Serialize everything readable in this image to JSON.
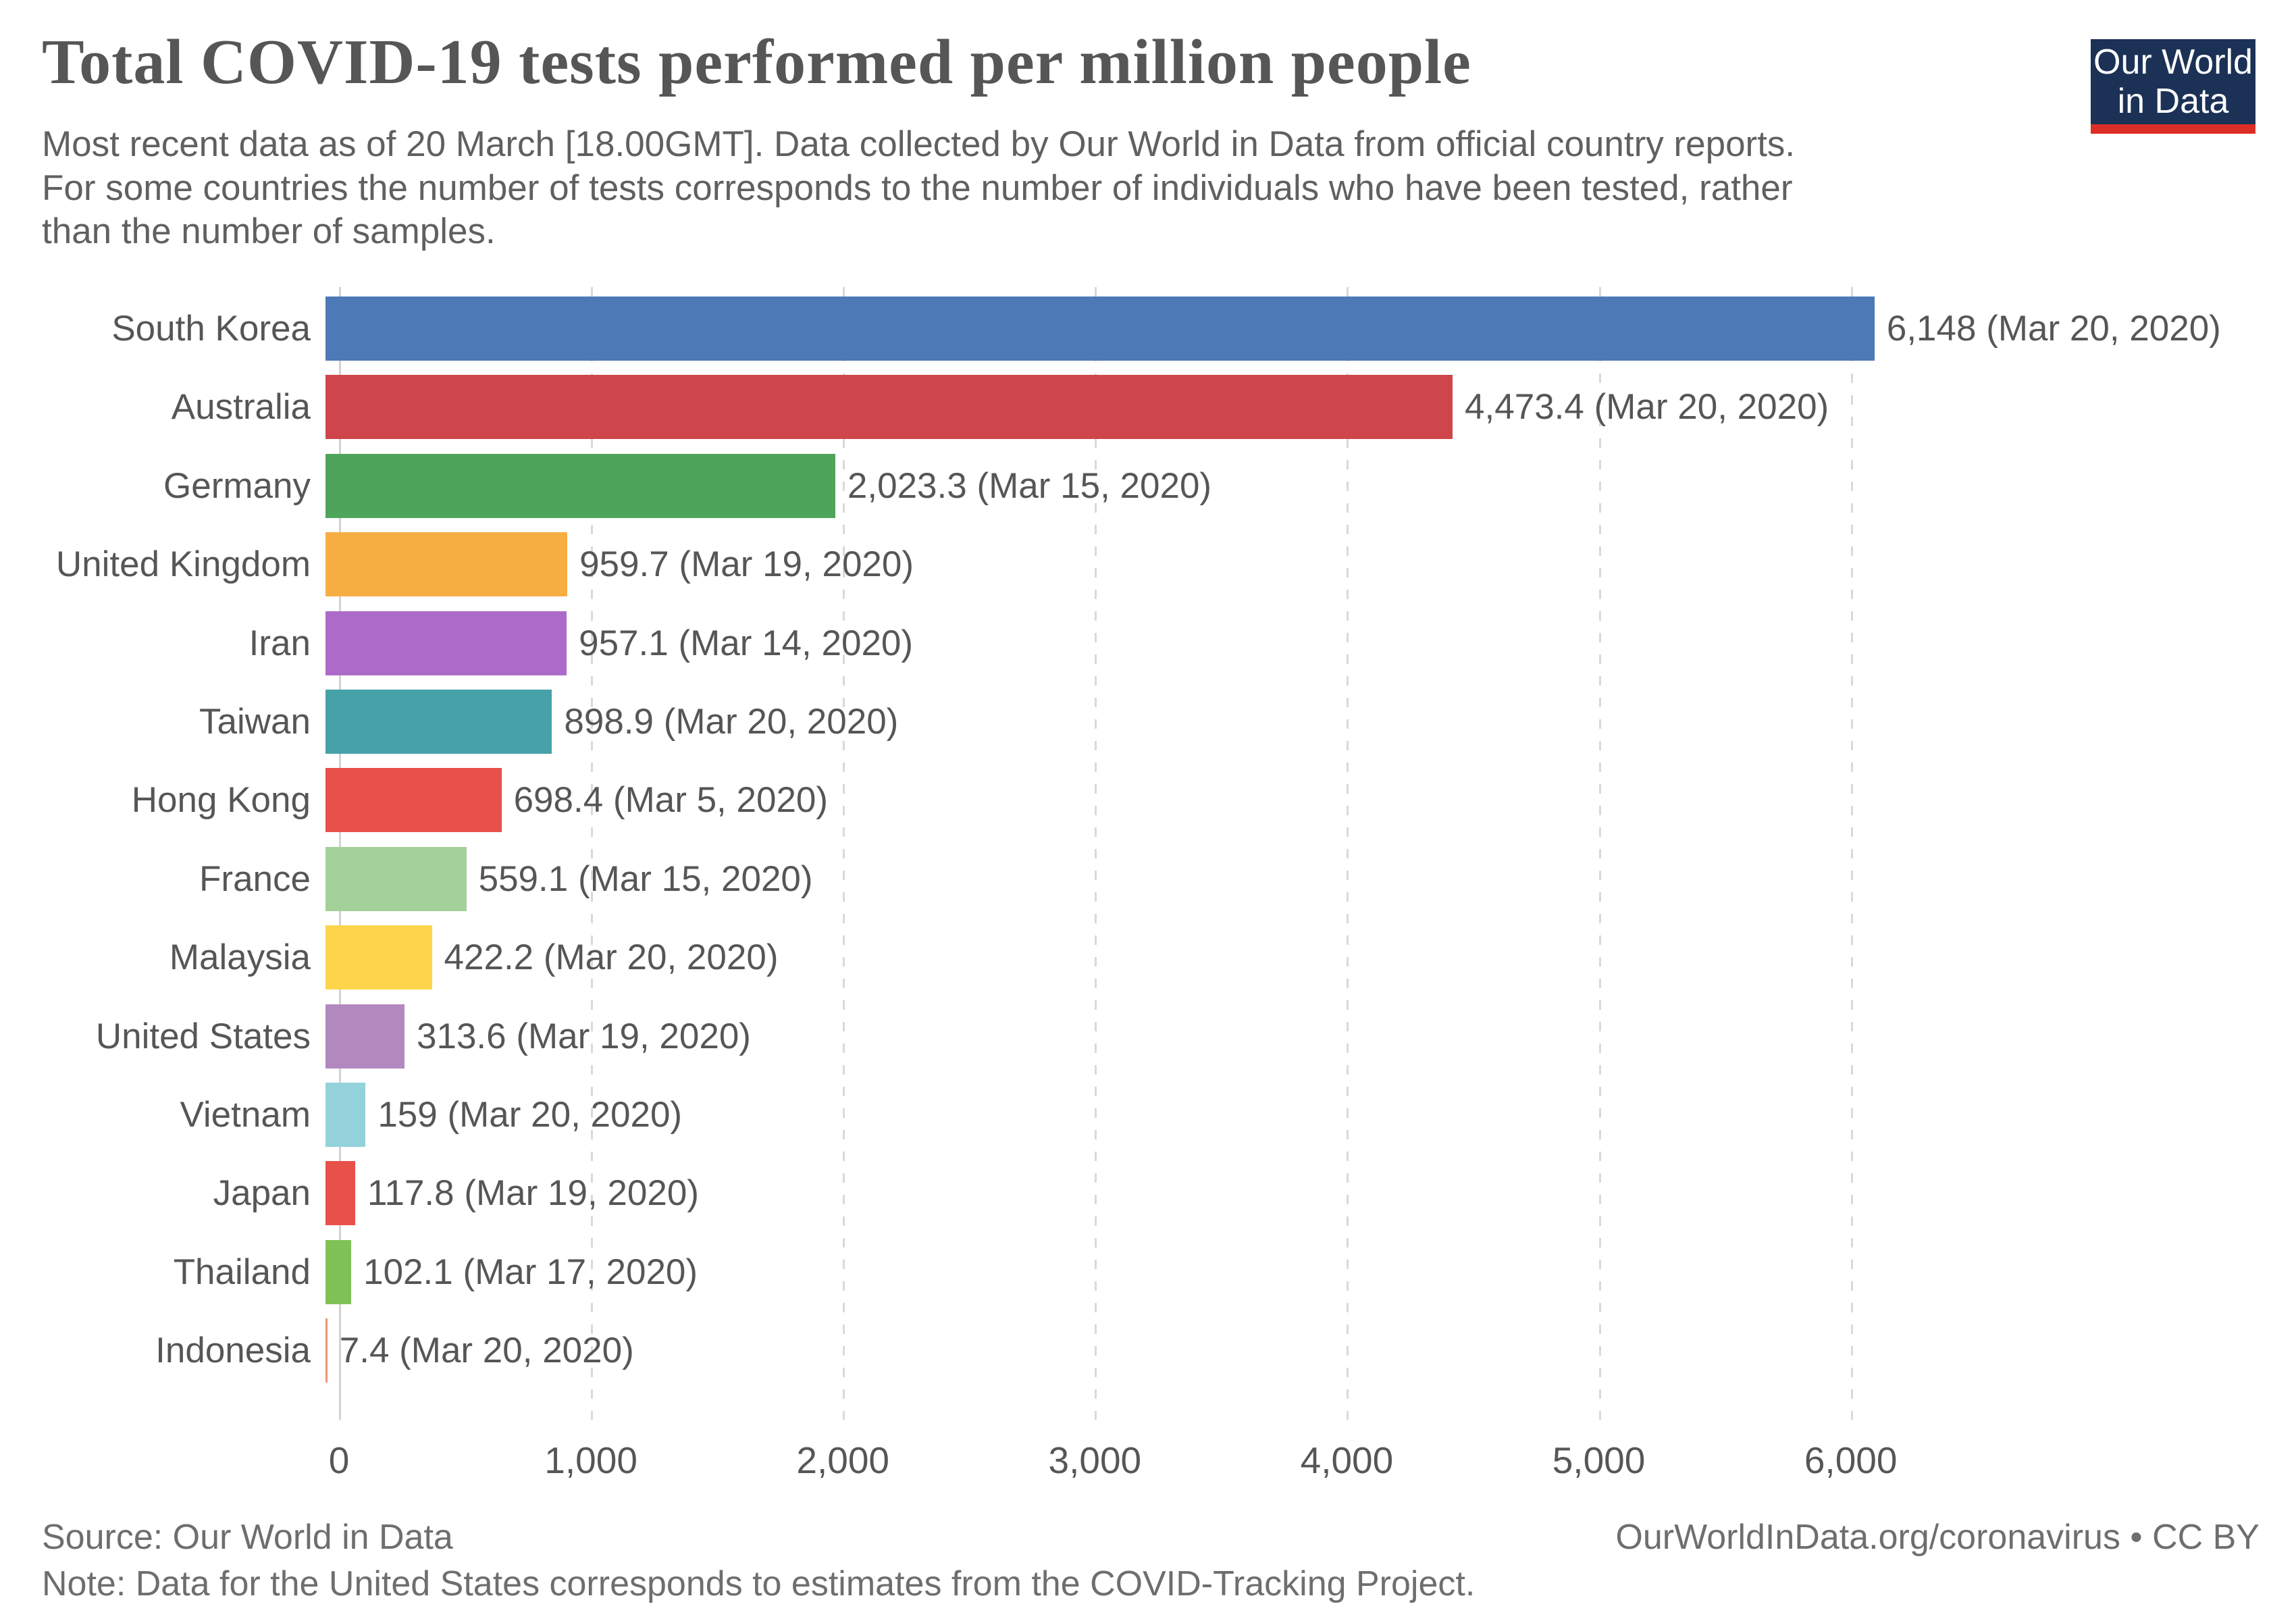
{
  "header": {
    "title": "Total COVID-19 tests performed per million people",
    "subtitle": "Most recent data as of 20 March [18.00GMT]. Data collected by Our World in Data from official country reports.\nFor some countries the number of tests corresponds to the number of individuals who have been tested, rather\nthan the number of samples.",
    "logo": {
      "line1": "Our World",
      "line2": "in Data",
      "bg_color": "#1b3156",
      "accent_color": "#dc2e27"
    }
  },
  "chart_data": {
    "type": "bar",
    "orientation": "horizontal",
    "title": "Total COVID-19 tests performed per million people",
    "categories": [
      "South Korea",
      "Australia",
      "Germany",
      "United Kingdom",
      "Iran",
      "Taiwan",
      "Hong Kong",
      "France",
      "Malaysia",
      "United States",
      "Vietnam",
      "Japan",
      "Thailand",
      "Indonesia"
    ],
    "values": [
      6148,
      4473.4,
      2023.3,
      959.7,
      957.1,
      898.9,
      698.4,
      559.1,
      422.2,
      313.6,
      159,
      117.8,
      102.1,
      7.4
    ],
    "value_labels": [
      "6,148 (Mar 20, 2020)",
      "4,473.4 (Mar 20, 2020)",
      "2,023.3 (Mar 15, 2020)",
      "959.7 (Mar 19, 2020)",
      "957.1 (Mar 14, 2020)",
      "898.9 (Mar 20, 2020)",
      "698.4 (Mar 5, 2020)",
      "559.1 (Mar 15, 2020)",
      "422.2 (Mar 20, 2020)",
      "313.6 (Mar 19, 2020)",
      "159 (Mar 20, 2020)",
      "117.8 (Mar 19, 2020)",
      "102.1 (Mar 17, 2020)",
      "7.4 (Mar 20, 2020)"
    ],
    "bar_colors": [
      "#4d79b7",
      "#cf454c",
      "#4fa45b",
      "#f6ae42",
      "#ad6bc9",
      "#46a1a8",
      "#e8504a",
      "#a4d09a",
      "#fdd54d",
      "#b289be",
      "#93d2db",
      "#e8504a",
      "#7fc156",
      "#ee9577"
    ],
    "xticks": [
      0,
      1000,
      2000,
      3000,
      4000,
      5000,
      6000
    ],
    "xtick_labels": [
      "0",
      "1,000",
      "2,000",
      "3,000",
      "4,000",
      "5,000",
      "6,000"
    ],
    "xlim": [
      0,
      7660
    ],
    "xlabel": "",
    "ylabel": "",
    "grid": "dashed-vertical",
    "legend": "none"
  },
  "footer": {
    "source": "Source: Our World in Data",
    "note": "Note: Data for the United States corresponds to estimates from the COVID-Tracking Project.",
    "link": "OurWorldInData.org/coronavirus • CC BY"
  },
  "colors": {
    "text_gray": "#565656",
    "footer_gray": "#6e6e6e",
    "gridline": "#d9d9d9",
    "background": "#ffffff"
  }
}
